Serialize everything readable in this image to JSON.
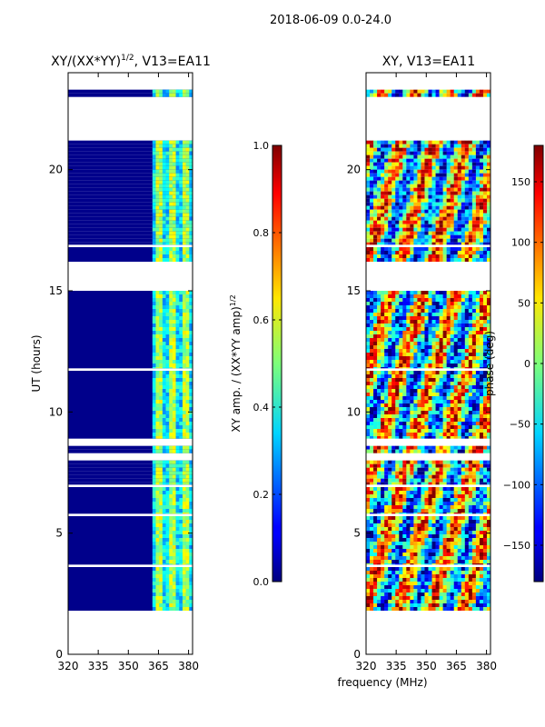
{
  "suptitle": "2018-06-09 0.0-24.0",
  "shared_xlabel": "frequency (MHz)",
  "chart_data": [
    {
      "type": "heatmap",
      "title_main": "XY/(XX*YY)",
      "title_exp": "1/2",
      "title_suffix": ", V13=EA11",
      "xlabel": "frequency (MHz)",
      "ylabel": "UT (hours)",
      "xlim": [
        320,
        382
      ],
      "ylim": [
        0,
        24
      ],
      "xticks": [
        320,
        335,
        350,
        365,
        380
      ],
      "yticks": [
        0,
        5,
        10,
        15,
        20
      ],
      "data_bands_hours": [
        [
          1.8,
          3.6
        ],
        [
          3.7,
          5.7
        ],
        [
          5.8,
          6.9
        ],
        [
          7.0,
          8.0
        ],
        [
          8.3,
          8.6
        ],
        [
          8.9,
          11.7
        ],
        [
          11.8,
          15.0
        ],
        [
          16.2,
          16.8
        ],
        [
          16.9,
          21.2
        ],
        [
          23.0,
          23.3
        ]
      ],
      "active_freq_range_mhz": [
        362,
        382
      ],
      "colorbar": {
        "label_main": "XY amp. / (XX*YY amp)",
        "label_exp": "1/2",
        "range": [
          0.0,
          1.0
        ],
        "ticks": [
          0.0,
          0.2,
          0.4,
          0.6,
          0.8,
          1.0
        ]
      }
    },
    {
      "type": "heatmap",
      "title": "XY, V13=EA11",
      "xlabel": "frequency (MHz)",
      "ylabel": "",
      "xlim": [
        320,
        382
      ],
      "ylim": [
        0,
        24
      ],
      "xticks": [
        320,
        335,
        350,
        365,
        380
      ],
      "yticks": [
        0,
        5,
        10,
        15,
        20
      ],
      "data_bands_hours": [
        [
          1.8,
          3.6
        ],
        [
          3.7,
          5.7
        ],
        [
          5.8,
          6.9
        ],
        [
          7.0,
          8.0
        ],
        [
          8.3,
          8.6
        ],
        [
          8.9,
          11.7
        ],
        [
          11.8,
          15.0
        ],
        [
          16.2,
          16.8
        ],
        [
          16.9,
          21.2
        ],
        [
          23.0,
          23.3
        ]
      ],
      "colorbar": {
        "label": "phase (deg)",
        "range": [
          -180,
          180
        ],
        "ticks": [
          -150,
          -100,
          -50,
          0,
          50,
          100,
          150
        ]
      }
    }
  ]
}
